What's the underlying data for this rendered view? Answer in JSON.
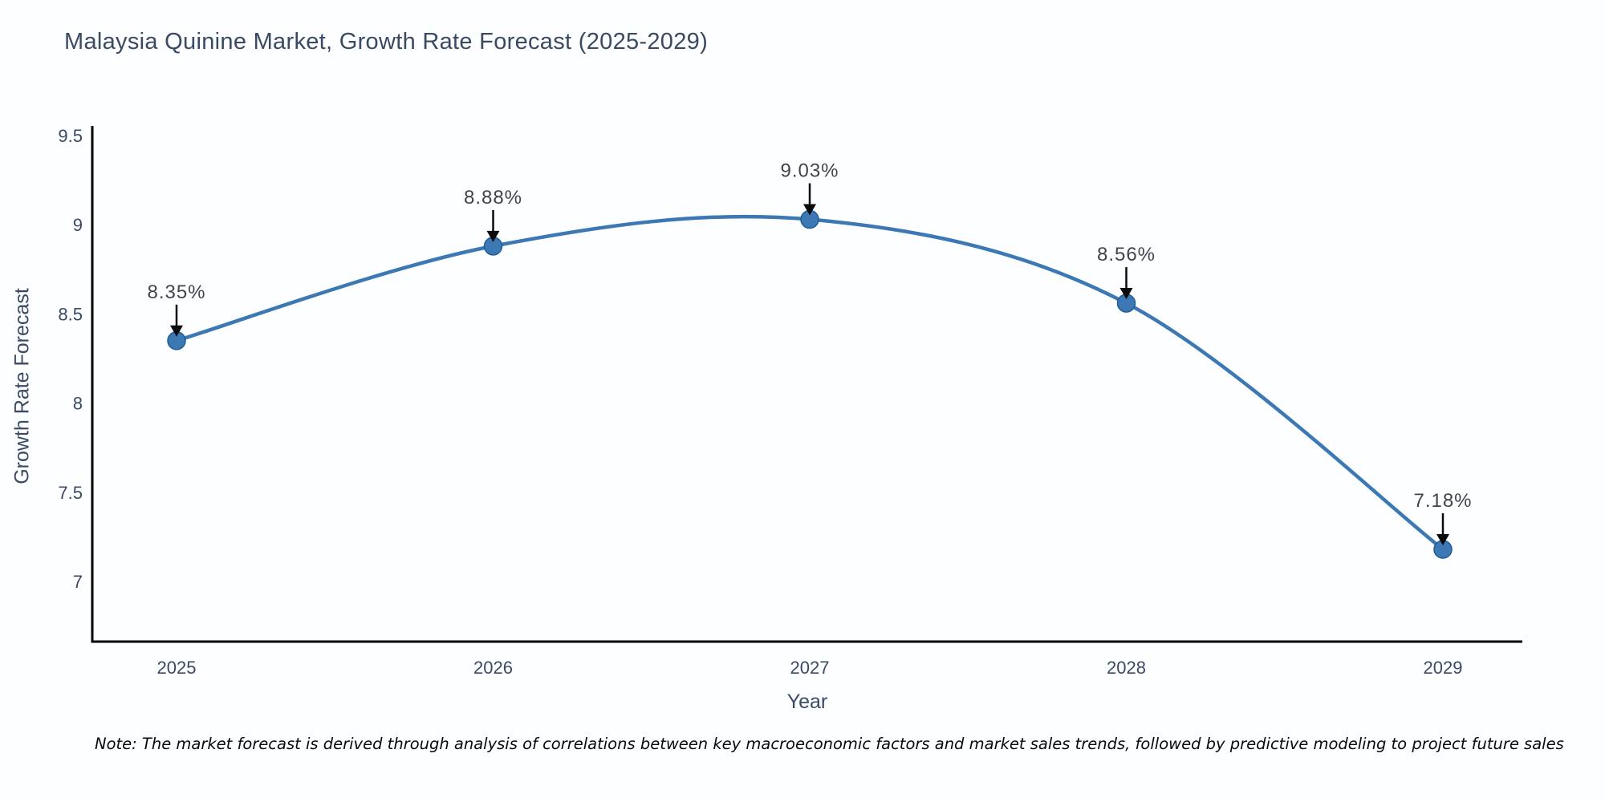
{
  "note": "Note: The market forecast is derived through analysis of correlations between key macroeconomic factors and market sales trends, followed by predictive modeling to project future sales",
  "chart_data": {
    "type": "line",
    "title": "Malaysia Quinine Market, Growth Rate Forecast (2025-2029)",
    "xlabel": "Year",
    "ylabel": "Growth Rate Forecast",
    "categories": [
      2025,
      2026,
      2027,
      2028,
      2029
    ],
    "values": [
      8.35,
      8.88,
      9.03,
      8.56,
      7.18
    ],
    "point_labels": [
      "8.35%",
      "8.88%",
      "9.03%",
      "8.56%",
      "7.18%"
    ],
    "y_ticks": [
      9.5,
      9,
      8.5,
      8,
      7.5,
      7
    ],
    "ylim": [
      6.66,
      9.55
    ],
    "line_shape": "spline",
    "grid": false,
    "legend": "none",
    "colors": {
      "line": "#3b78b4",
      "marker": "#3b78b4",
      "marker_edge": "#1f5d94",
      "axis": "#000000",
      "tick_text": "#3b4a63",
      "annotation_text": "#3f444d",
      "arrow": "#0b0b0b"
    }
  }
}
